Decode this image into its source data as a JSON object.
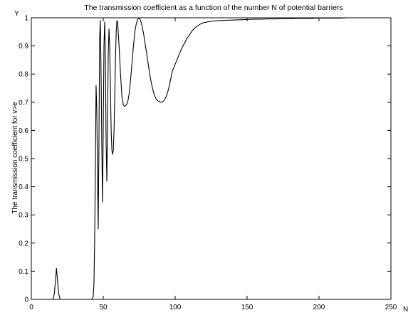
{
  "chart_data": {
    "type": "line",
    "title": "The transmission coefficient as a function of the number N of potential barriers",
    "xlabel": "N",
    "ylabel": "The transmission coefficient for v>e",
    "y_corner_label": "Y",
    "xlim": [
      0,
      250
    ],
    "ylim": [
      0,
      1
    ],
    "grid": false,
    "x_ticks": [
      0,
      50,
      100,
      150,
      200,
      250
    ],
    "y_ticks": [
      0,
      0.1,
      0.2,
      0.3,
      0.4,
      0.5,
      0.6,
      0.7,
      0.8,
      0.9,
      1
    ],
    "x_tick_labels": [
      "0",
      "50",
      "100",
      "150",
      "200",
      "250"
    ],
    "y_tick_labels": [
      "0",
      "0.1",
      "0.2",
      "0.3",
      "0.4",
      "0.5",
      "0.6",
      "0.7",
      "0.8",
      "0.9",
      "1"
    ],
    "series": [
      {
        "color": "#000000",
        "x": [
          0,
          15,
          16,
          17,
          17.5,
          18,
          19,
          20,
          21,
          30,
          42,
          43,
          43.5,
          44,
          44.5,
          45,
          45.5,
          46,
          46.5,
          47,
          47.5,
          48,
          48.5,
          49,
          49.5,
          50,
          50.5,
          51,
          51.5,
          52,
          52.5,
          53,
          53.5,
          54,
          54.5,
          55,
          55.5,
          56,
          56.5,
          57,
          57.5,
          58,
          58.5,
          59,
          59.5,
          60,
          61,
          62,
          63,
          64,
          65,
          66,
          67,
          68,
          69,
          70,
          71,
          72,
          73,
          74,
          75,
          76,
          77,
          78,
          79,
          80,
          81,
          82,
          83,
          84,
          85,
          86,
          87,
          88,
          89,
          90,
          91,
          92,
          93,
          94,
          95,
          96,
          97,
          98,
          100,
          102,
          104,
          106,
          108,
          110,
          112,
          114,
          116,
          118,
          120,
          123,
          126,
          130,
          135,
          140,
          145,
          150,
          155,
          160,
          165,
          170,
          175,
          180,
          185,
          190,
          195,
          200,
          205,
          210,
          215,
          220,
          225,
          230,
          235,
          240,
          245,
          250
        ],
        "y": [
          0,
          0,
          0.02,
          0.08,
          0.11,
          0.08,
          0.02,
          0,
          0,
          0,
          0,
          0.01,
          0.05,
          0.2,
          0.45,
          0.76,
          0.68,
          0.45,
          0.25,
          0.55,
          0.93,
          0.99,
          0.8,
          0.55,
          0.345,
          0.6,
          0.9,
          0.985,
          0.85,
          0.55,
          0.42,
          0.65,
          0.88,
          0.96,
          0.9,
          0.75,
          0.6,
          0.53,
          0.515,
          0.53,
          0.6,
          0.72,
          0.85,
          0.95,
          0.99,
          0.985,
          0.9,
          0.8,
          0.72,
          0.69,
          0.685,
          0.69,
          0.7,
          0.73,
          0.78,
          0.84,
          0.9,
          0.95,
          0.98,
          0.995,
          1.0,
          0.99,
          0.97,
          0.945,
          0.91,
          0.88,
          0.845,
          0.81,
          0.78,
          0.755,
          0.735,
          0.72,
          0.71,
          0.705,
          0.702,
          0.7,
          0.701,
          0.705,
          0.712,
          0.723,
          0.74,
          0.76,
          0.785,
          0.81,
          0.835,
          0.86,
          0.885,
          0.905,
          0.925,
          0.94,
          0.955,
          0.965,
          0.973,
          0.979,
          0.983,
          0.986,
          0.988,
          0.99,
          0.991,
          0.992,
          0.993,
          0.994,
          0.995,
          0.995,
          0.996,
          0.996,
          0.997,
          0.997,
          0.998,
          0.998,
          0.998,
          0.999,
          0.999,
          0.999,
          0.999,
          1.0,
          1.0,
          1.0,
          1.0,
          1.0,
          1.0,
          1.0
        ]
      }
    ]
  }
}
